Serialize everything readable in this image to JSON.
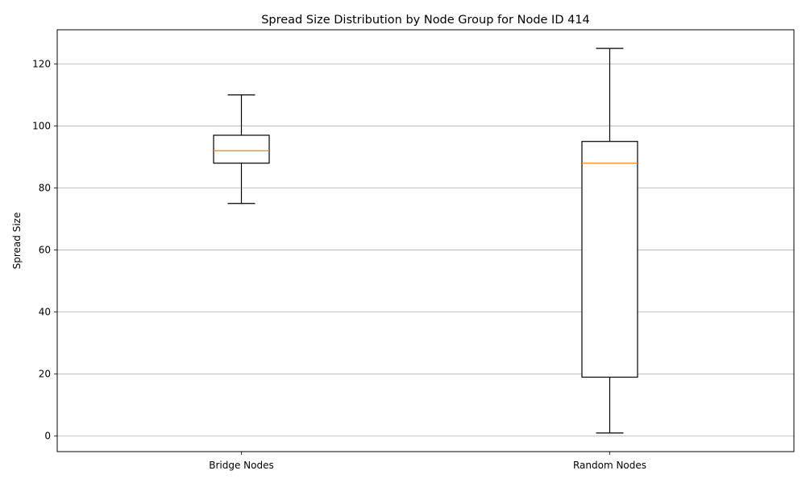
{
  "chart_data": {
    "type": "box",
    "title": "Spread Size Distribution by Node Group for Node ID 414",
    "xlabel": "",
    "ylabel": "Spread Size",
    "ylim": [
      -5,
      131
    ],
    "yticks": [
      0,
      20,
      40,
      60,
      80,
      100,
      120
    ],
    "grid": "y",
    "categories": [
      "Bridge Nodes",
      "Random Nodes"
    ],
    "boxes": [
      {
        "category": "Bridge Nodes",
        "whisker_low": 75,
        "q1": 88,
        "median": 92,
        "q3": 97,
        "whisker_high": 110
      },
      {
        "category": "Random Nodes",
        "whisker_low": 1,
        "q1": 19,
        "median": 88,
        "q3": 95,
        "whisker_high": 125
      }
    ],
    "colors": {
      "box": "#000000",
      "median": "#ff7f0e",
      "grid": "#b0b0b0"
    }
  }
}
